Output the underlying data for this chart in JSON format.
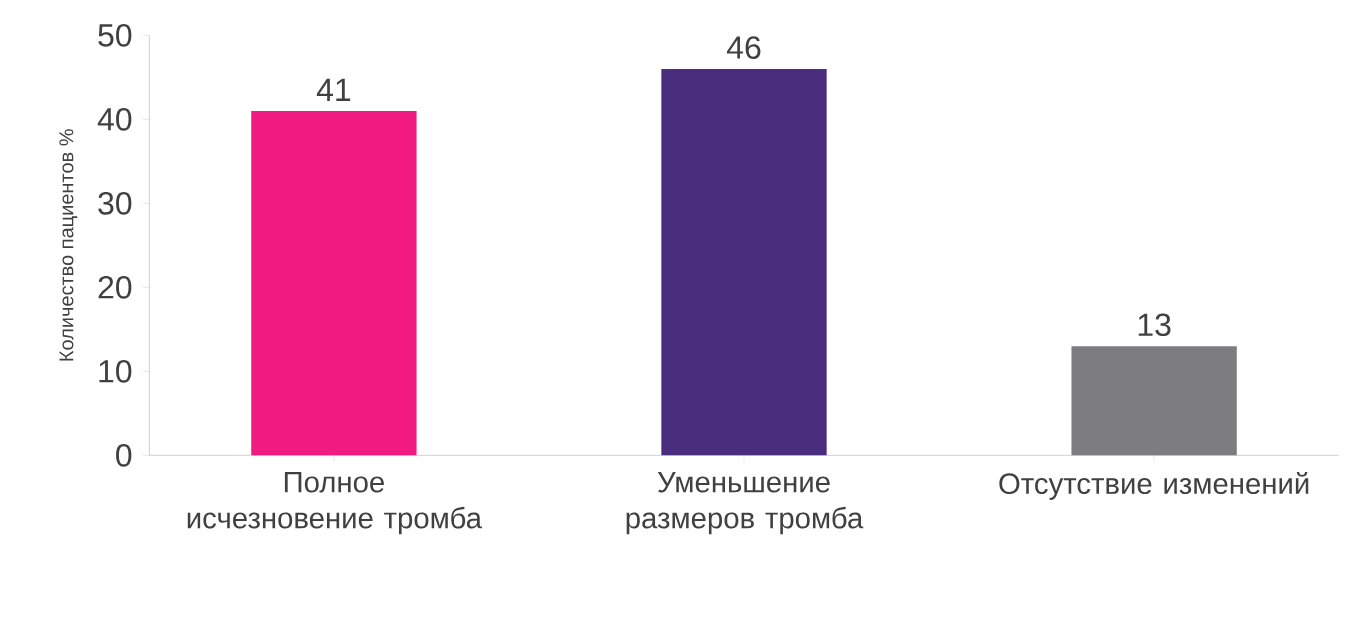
{
  "chart_data": {
    "type": "bar",
    "ylabel": "Количество пациентов %",
    "categories": [
      "Полное исчезновение тромба",
      "Уменьшение размеров тромба",
      "Отсутствие изменений"
    ],
    "values": [
      41,
      46,
      13
    ],
    "colors": [
      "#f01a80",
      "#4a2d7c",
      "#7d7d80"
    ],
    "ylim": [
      0,
      50
    ],
    "yticks": [
      0,
      10,
      20,
      30,
      40,
      50
    ],
    "data_labels": true
  }
}
